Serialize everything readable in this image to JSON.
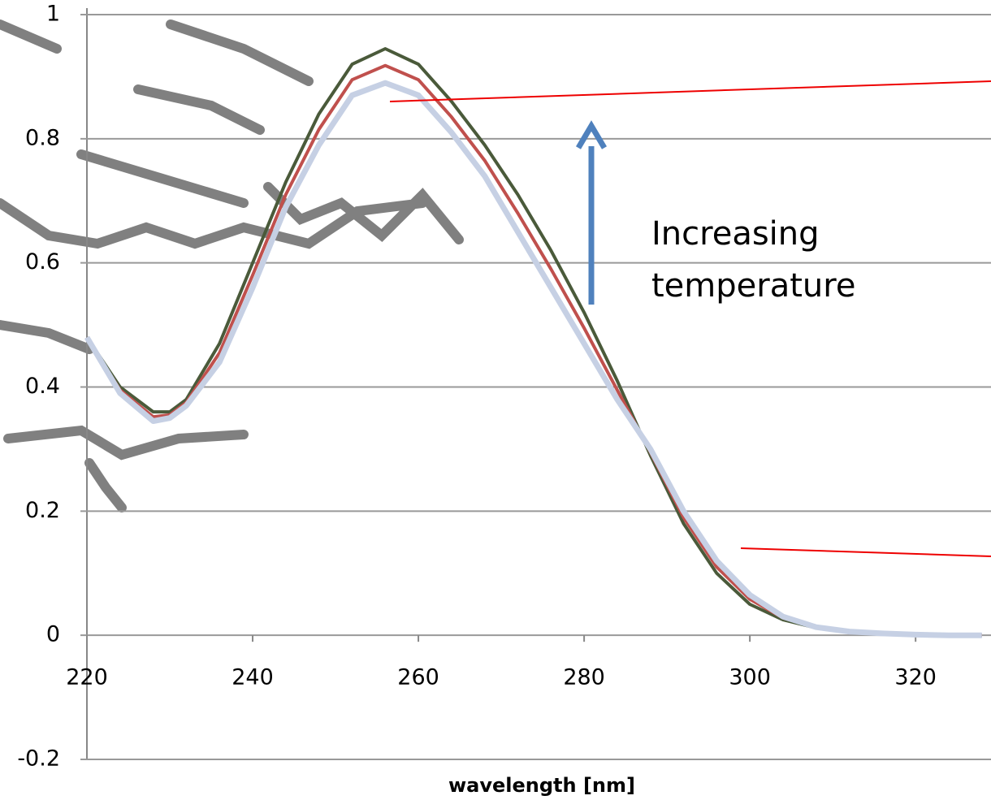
{
  "chart_data": {
    "type": "line",
    "x_label": "wavelength [nm]",
    "annotation": [
      "Increasing",
      "temperature"
    ],
    "x": [
      220,
      224,
      228,
      230,
      232,
      236,
      240,
      244,
      248,
      252,
      256,
      260,
      264,
      268,
      272,
      276,
      280,
      284,
      288,
      292,
      296,
      300,
      304,
      308,
      312,
      316,
      320,
      324,
      328
    ],
    "series": [
      {
        "color": "#4a5a3a",
        "values": [
          0.48,
          0.4,
          0.36,
          0.36,
          0.38,
          0.47,
          0.6,
          0.73,
          0.84,
          0.92,
          0.945,
          0.92,
          0.86,
          0.79,
          0.71,
          0.62,
          0.52,
          0.41,
          0.29,
          0.18,
          0.1,
          0.05,
          0.025,
          0.012,
          0.005,
          0.002,
          0.001,
          0,
          0
        ]
      },
      {
        "color": "#c0504d",
        "values": [
          0.48,
          0.395,
          0.352,
          0.355,
          0.375,
          0.455,
          0.58,
          0.71,
          0.815,
          0.895,
          0.918,
          0.895,
          0.835,
          0.765,
          0.68,
          0.59,
          0.495,
          0.395,
          0.295,
          0.19,
          0.11,
          0.058,
          0.028,
          0.013,
          0.006,
          0.003,
          0.001,
          0,
          0
        ]
      },
      {
        "color": "#c6d0e4",
        "values": [
          0.48,
          0.39,
          0.345,
          0.35,
          0.37,
          0.44,
          0.56,
          0.69,
          0.79,
          0.87,
          0.89,
          0.87,
          0.81,
          0.74,
          0.65,
          0.56,
          0.47,
          0.38,
          0.3,
          0.2,
          0.12,
          0.065,
          0.03,
          0.013,
          0.006,
          0.003,
          0.001,
          0,
          0
        ]
      }
    ],
    "xlim": [
      220,
      329.1
    ],
    "xticks": [
      220,
      240,
      260,
      280,
      300,
      320
    ],
    "ylim": [
      -0.2,
      1
    ],
    "yticks": [
      -0.2,
      0,
      0.2,
      0.4,
      0.6,
      0.8,
      1
    ],
    "grid": true
  }
}
